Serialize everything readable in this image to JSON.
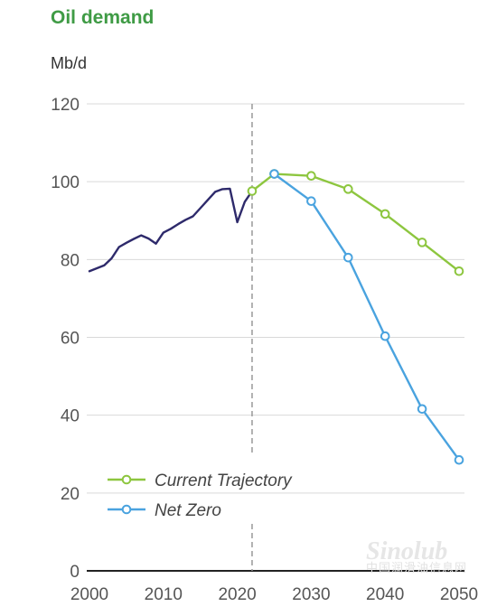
{
  "chart_data": {
    "type": "line",
    "title": "Oil demand",
    "ylabel": "Mb/d",
    "xlabel": "",
    "xlim": [
      2000,
      2050
    ],
    "ylim": [
      0,
      120
    ],
    "x_ticks": [
      2000,
      2010,
      2020,
      2030,
      2040,
      2050
    ],
    "y_ticks": [
      0,
      20,
      40,
      60,
      80,
      100,
      120
    ],
    "grid": "horizontal",
    "reference_line_x": 2022,
    "legend_position": "bottom-left",
    "series": [
      {
        "name": "",
        "color": "#2e2a6b",
        "markers": false,
        "points": [
          [
            2000,
            77
          ],
          [
            2002,
            78.5
          ],
          [
            2003,
            80.3
          ],
          [
            2004,
            83.2
          ],
          [
            2005,
            84.3
          ],
          [
            2006,
            85.3
          ],
          [
            2007,
            86.2
          ],
          [
            2008,
            85.4
          ],
          [
            2009,
            84.1
          ],
          [
            2010,
            86.9
          ],
          [
            2011,
            87.9
          ],
          [
            2012,
            89.1
          ],
          [
            2013,
            90.2
          ],
          [
            2014,
            91.1
          ],
          [
            2015,
            93.2
          ],
          [
            2016,
            95.3
          ],
          [
            2017,
            97.4
          ],
          [
            2018,
            98.1
          ],
          [
            2019,
            98.2
          ],
          [
            2020,
            89.6
          ],
          [
            2021,
            94.8
          ],
          [
            2022,
            97.6
          ]
        ]
      },
      {
        "name": "Current Trajectory",
        "color": "#8dc63f",
        "markers": true,
        "points": [
          [
            2022,
            97.6
          ],
          [
            2025,
            102.0
          ],
          [
            2030,
            101.5
          ],
          [
            2035,
            98.1
          ],
          [
            2040,
            91.7
          ],
          [
            2045,
            84.4
          ],
          [
            2050,
            77.0
          ]
        ]
      },
      {
        "name": "Net Zero",
        "color": "#4aa3df",
        "markers": true,
        "points": [
          [
            2025,
            102.0
          ],
          [
            2030,
            95.0
          ],
          [
            2035,
            80.5
          ],
          [
            2040,
            60.3
          ],
          [
            2045,
            41.6
          ],
          [
            2050,
            28.5
          ]
        ]
      }
    ]
  },
  "watermark": {
    "main": "Sinolub",
    "sub": "中国润滑油信息网"
  }
}
